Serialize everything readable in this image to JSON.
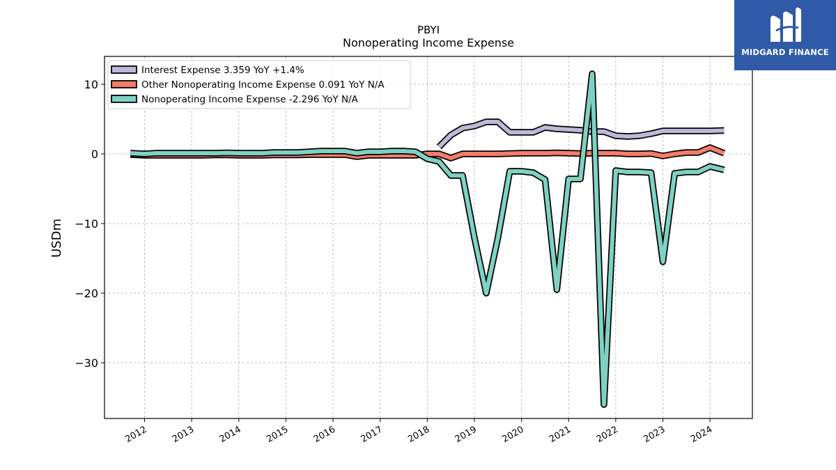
{
  "brand": {
    "name": "MIDGARD FINANCE",
    "bg_color": "#2f5aa8"
  },
  "chart_data": {
    "type": "line",
    "title": "PBYI",
    "subtitle": "Nonoperating Income Expense",
    "ylabel": "USDm",
    "xlabel": "",
    "ylim": [
      -38,
      14
    ],
    "yticks": [
      10,
      0,
      -10,
      -20,
      -30
    ],
    "ytick_labels": [
      "10",
      "0",
      "−10",
      "−20",
      "−30"
    ],
    "xlim": [
      2011.15,
      2024.9
    ],
    "xticks": [
      2012,
      2013,
      2014,
      2015,
      2016,
      2017,
      2018,
      2019,
      2020,
      2021,
      2022,
      2023,
      2024
    ],
    "xtick_labels": [
      "2012",
      "2013",
      "2014",
      "2015",
      "2016",
      "2017",
      "2018",
      "2019",
      "2020",
      "2021",
      "2022",
      "2023",
      "2024"
    ],
    "grid": true,
    "legend_position": "top-left",
    "series": [
      {
        "name": "Interest Expense",
        "legend_label": "Interest Expense  3.359 YoY +1.4%",
        "color": "#bcb9d9",
        "x": [
          2018.25,
          2018.5,
          2018.75,
          2019.0,
          2019.25,
          2019.5,
          2019.75,
          2020.0,
          2020.25,
          2020.5,
          2020.75,
          2021.0,
          2021.25,
          2021.5,
          2021.75,
          2022.0,
          2022.25,
          2022.5,
          2022.75,
          2023.0,
          2023.25,
          2023.5,
          2023.75,
          2024.0,
          2024.3
        ],
        "y": [
          1.0,
          2.7,
          3.7,
          4.0,
          4.6,
          4.6,
          3.1,
          3.1,
          3.1,
          3.8,
          3.6,
          3.5,
          3.4,
          3.2,
          3.2,
          2.6,
          2.5,
          2.6,
          2.9,
          3.3,
          3.3,
          3.3,
          3.3,
          3.3,
          3.359
        ]
      },
      {
        "name": "Other Nonoperating Income Expense",
        "legend_label": "Other Nonoperating Income Expense  0.091 YoY N/A",
        "color": "#f47c6b",
        "x": [
          2011.7,
          2012.0,
          2012.25,
          2012.5,
          2012.75,
          2013.0,
          2013.25,
          2013.5,
          2013.75,
          2014.0,
          2014.25,
          2014.5,
          2014.75,
          2015.0,
          2015.25,
          2015.5,
          2015.75,
          2016.0,
          2016.25,
          2016.5,
          2016.75,
          2017.0,
          2017.25,
          2017.5,
          2017.75,
          2018.0,
          2018.25,
          2018.5,
          2018.75,
          2019.0,
          2019.25,
          2019.5,
          2019.75,
          2020.0,
          2020.25,
          2020.5,
          2020.75,
          2021.0,
          2021.25,
          2021.5,
          2021.75,
          2022.0,
          2022.25,
          2022.5,
          2022.75,
          2023.0,
          2023.25,
          2023.5,
          2023.75,
          2024.0,
          2024.3
        ],
        "y": [
          -0.1,
          -0.2,
          -0.2,
          -0.2,
          -0.2,
          -0.2,
          -0.2,
          -0.15,
          -0.15,
          -0.2,
          -0.2,
          -0.2,
          -0.15,
          -0.15,
          -0.15,
          -0.1,
          -0.1,
          -0.1,
          -0.1,
          -0.4,
          -0.2,
          -0.2,
          -0.2,
          -0.2,
          -0.2,
          0.0,
          0.0,
          -0.6,
          0.0,
          0.0,
          0.0,
          0.0,
          0.05,
          0.1,
          0.1,
          0.1,
          0.15,
          0.1,
          0.05,
          0.1,
          0.1,
          0.1,
          0.0,
          0.0,
          0.05,
          -0.3,
          0.0,
          0.2,
          0.2,
          0.9,
          0.091
        ]
      },
      {
        "name": "Nonoperating Income Expense",
        "legend_label": "Nonoperating Income Expense  -2.296 YoY N/A",
        "color": "#7fd1c1",
        "x": [
          2011.7,
          2012.0,
          2012.25,
          2012.5,
          2012.75,
          2013.0,
          2013.25,
          2013.5,
          2013.75,
          2014.0,
          2014.25,
          2014.5,
          2014.75,
          2015.0,
          2015.25,
          2015.5,
          2015.75,
          2016.0,
          2016.25,
          2016.5,
          2016.75,
          2017.0,
          2017.25,
          2017.5,
          2017.75,
          2018.0,
          2018.25,
          2018.5,
          2018.75,
          2019.0,
          2019.25,
          2019.5,
          2019.75,
          2020.0,
          2020.25,
          2020.5,
          2020.75,
          2021.0,
          2021.25,
          2021.5,
          2021.75,
          2022.0,
          2022.25,
          2022.5,
          2022.75,
          2023.0,
          2023.25,
          2023.5,
          2023.75,
          2024.0,
          2024.3
        ],
        "y": [
          0.1,
          0.0,
          0.1,
          0.1,
          0.1,
          0.1,
          0.1,
          0.1,
          0.15,
          0.1,
          0.1,
          0.1,
          0.2,
          0.2,
          0.2,
          0.3,
          0.4,
          0.4,
          0.4,
          0.1,
          0.3,
          0.3,
          0.4,
          0.4,
          0.3,
          -0.7,
          -1.1,
          -3.1,
          -3.1,
          -12.0,
          -20.0,
          -12.0,
          -2.5,
          -2.5,
          -2.7,
          -3.7,
          -19.5,
          -3.6,
          -3.6,
          11.5,
          -36.0,
          -2.4,
          -2.6,
          -2.6,
          -2.7,
          -15.5,
          -2.8,
          -2.6,
          -2.6,
          -1.8,
          -2.296
        ]
      }
    ]
  }
}
